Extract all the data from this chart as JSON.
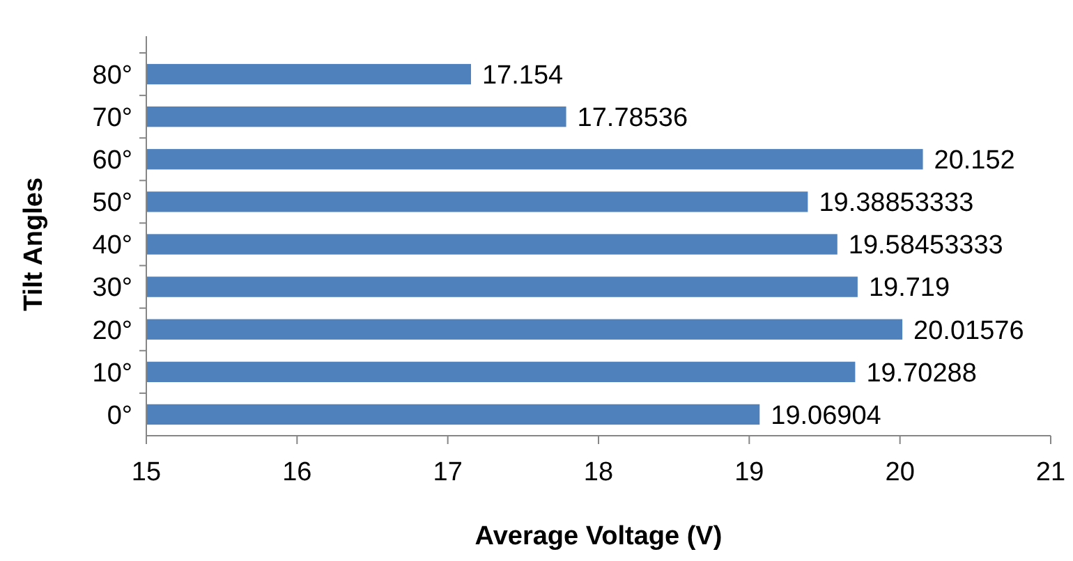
{
  "chart_data": {
    "type": "bar",
    "orientation": "horizontal",
    "xlabel": "Average Voltage (V)",
    "ylabel": "Tilt Angles",
    "categories": [
      "80°",
      "70°",
      "60°",
      "50°",
      "40°",
      "30°",
      "20°",
      "10°",
      "0°"
    ],
    "values": [
      17.154,
      17.78536,
      20.152,
      19.38853333,
      19.58453333,
      19.719,
      20.01576,
      19.70288,
      19.06904
    ],
    "color": "#4f81bd",
    "xlim": [
      15,
      21
    ],
    "xticks": [
      15,
      16,
      17,
      18,
      19,
      20,
      21
    ],
    "data_labels": true
  }
}
